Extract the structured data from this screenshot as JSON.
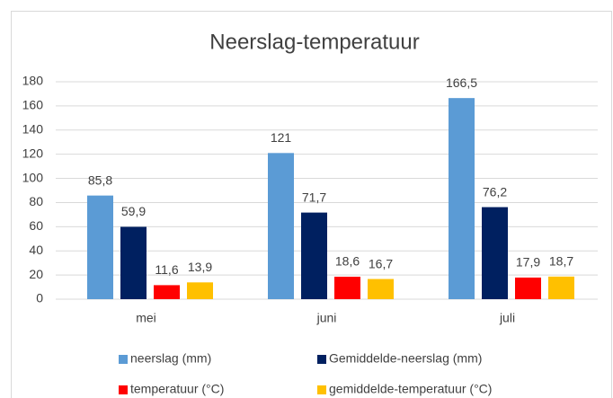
{
  "chart_data": {
    "type": "bar",
    "title": "Neerslag-temperatuur",
    "categories": [
      "mei",
      "juni",
      "juli"
    ],
    "series": [
      {
        "name": "neerslag (mm)",
        "color": "#5b9bd5",
        "values": [
          85.8,
          121,
          166.5
        ],
        "value_labels": [
          "85,8",
          "121",
          "166,5"
        ]
      },
      {
        "name": "Gemiddelde-neerslag (mm)",
        "color": "#002060",
        "values": [
          59.9,
          71.7,
          76.2
        ],
        "value_labels": [
          "59,9",
          "71,7",
          "76,2"
        ]
      },
      {
        "name": "temperatuur (°C)",
        "color": "#ff0000",
        "values": [
          11.6,
          18.6,
          17.9
        ],
        "value_labels": [
          "11,6",
          "18,6",
          "17,9"
        ]
      },
      {
        "name": "gemiddelde-temperatuur (°C)",
        "color": "#ffc000",
        "values": [
          13.9,
          16.7,
          18.7
        ],
        "value_labels": [
          "13,9",
          "16,7",
          "18,7"
        ]
      }
    ],
    "ylim": [
      0,
      180
    ],
    "yticks": [
      0,
      20,
      40,
      60,
      80,
      100,
      120,
      140,
      160,
      180
    ],
    "grid": true,
    "legend": "bottom"
  }
}
